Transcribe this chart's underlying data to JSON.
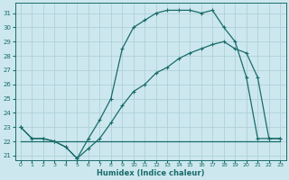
{
  "xlabel": "Humidex (Indice chaleur)",
  "bg_color": "#cce8ee",
  "grid_color": "#b0d0d8",
  "line_color": "#1a6b6b",
  "xlim": [
    -0.5,
    23.5
  ],
  "ylim": [
    20.7,
    31.7
  ],
  "yticks": [
    21,
    22,
    23,
    24,
    25,
    26,
    27,
    28,
    29,
    30,
    31
  ],
  "xticks": [
    0,
    1,
    2,
    3,
    4,
    5,
    6,
    7,
    8,
    9,
    10,
    11,
    12,
    13,
    14,
    15,
    16,
    17,
    18,
    19,
    20,
    21,
    22,
    23
  ],
  "line1_x": [
    0,
    1,
    2,
    3,
    4,
    5,
    6,
    7,
    8,
    9,
    10,
    11,
    12,
    13,
    14,
    15,
    16,
    17,
    18,
    19,
    20,
    21,
    22,
    23
  ],
  "line1_y": [
    22.0,
    22.0,
    22.0,
    22.0,
    22.0,
    22.0,
    22.0,
    22.0,
    22.0,
    22.0,
    22.0,
    22.0,
    22.0,
    22.0,
    22.0,
    22.0,
    22.0,
    22.0,
    22.0,
    22.0,
    22.0,
    22.0,
    22.0,
    22.0
  ],
  "line2_x": [
    0,
    1,
    2,
    3,
    4,
    5,
    6,
    7,
    8,
    9,
    10,
    11,
    12,
    13,
    14,
    15,
    16,
    17,
    18,
    19,
    20,
    21,
    22,
    23
  ],
  "line2_y": [
    23.0,
    22.2,
    22.2,
    22.0,
    21.6,
    20.8,
    21.5,
    22.2,
    23.3,
    24.5,
    25.5,
    26.0,
    26.8,
    27.2,
    27.8,
    28.2,
    28.5,
    28.8,
    29.0,
    28.5,
    28.2,
    26.5,
    22.2,
    22.2
  ],
  "line3_x": [
    0,
    1,
    2,
    3,
    4,
    5,
    6,
    7,
    8,
    9,
    10,
    11,
    12,
    13,
    14,
    15,
    16,
    17,
    18,
    19,
    20,
    21,
    22,
    23
  ],
  "line3_y": [
    23.0,
    22.2,
    22.2,
    22.0,
    21.6,
    20.8,
    22.2,
    23.5,
    25.0,
    28.5,
    30.0,
    30.5,
    31.0,
    31.2,
    31.2,
    31.2,
    31.0,
    31.2,
    30.0,
    29.0,
    26.5,
    22.2,
    22.2,
    22.2
  ]
}
